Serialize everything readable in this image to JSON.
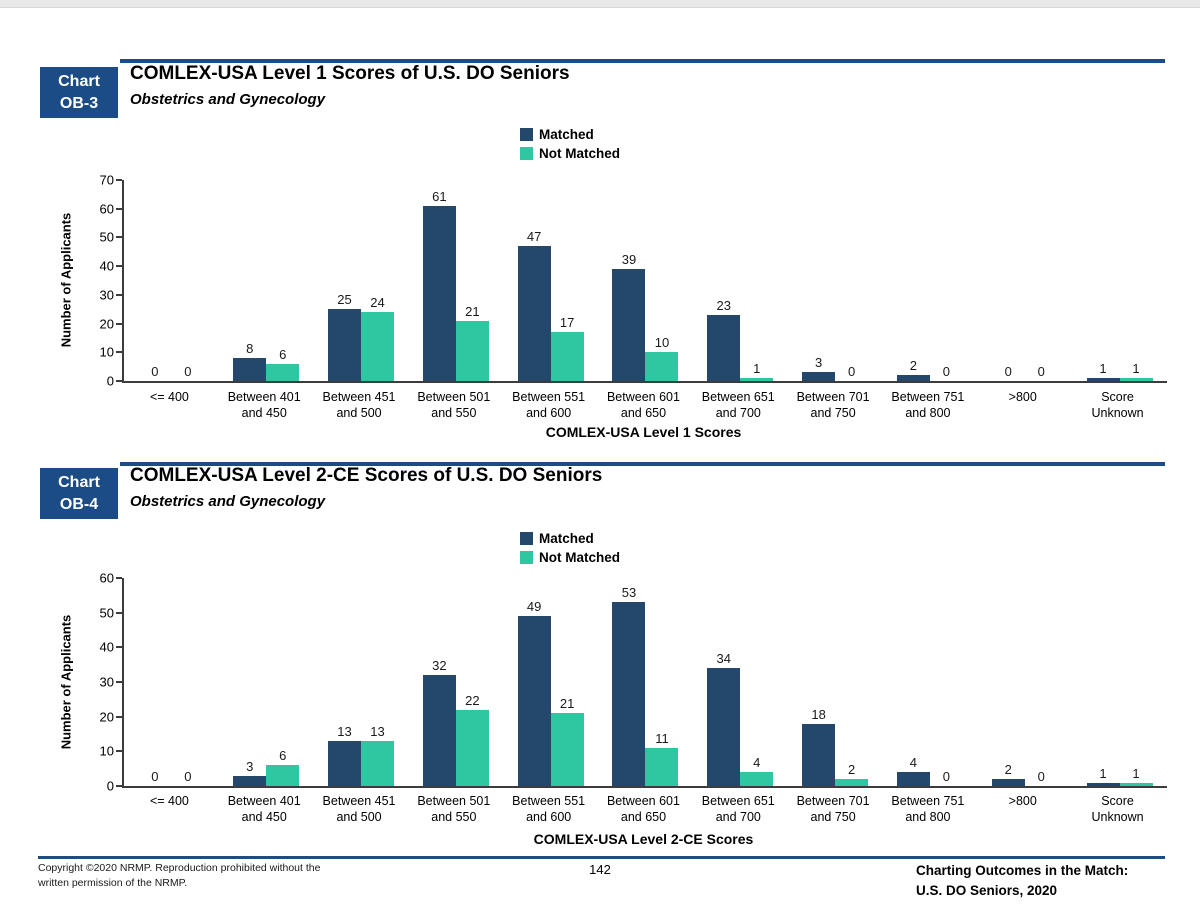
{
  "page": {
    "colors": {
      "header_blue": "#1c4c85",
      "matched": "#23486b",
      "not_matched": "#2fc7a2"
    },
    "footer": {
      "copyright": "Copyright ©2020 NRMP. Reproduction prohibited without the\nwritten permission of the NRMP.",
      "page_number": "142",
      "report_title": "Charting Outcomes in the Match:\nU.S. DO Seniors, 2020"
    }
  },
  "chart_data": [
    {
      "type": "bar",
      "badge": {
        "line1": "Chart",
        "line2": "OB-3"
      },
      "title": "COMLEX-USA Level 1 Scores of U.S. DO Seniors",
      "subtitle": "Obstetrics and Gynecology",
      "xlabel": "COMLEX-USA Level 1 Scores",
      "ylabel": "Number of Applicants",
      "ylim": [
        0,
        70
      ],
      "ytick_step": 10,
      "grid": false,
      "legend_position": "top-center",
      "legend": [
        "Matched",
        "Not Matched"
      ],
      "categories": [
        "<= 400",
        "Between 401\nand 450",
        "Between 451\nand 500",
        "Between 501\nand 550",
        "Between 551\nand 600",
        "Between 601\nand 650",
        "Between 651\nand 700",
        "Between 701\nand 750",
        "Between 751\nand 800",
        ">800",
        "Score\nUnknown"
      ],
      "series": [
        {
          "name": "Matched",
          "color": "#23486b",
          "values": [
            0,
            8,
            25,
            61,
            47,
            39,
            23,
            3,
            2,
            0,
            1
          ]
        },
        {
          "name": "Not Matched",
          "color": "#2fc7a2",
          "values": [
            0,
            6,
            24,
            21,
            17,
            10,
            1,
            0,
            0,
            0,
            1
          ]
        }
      ]
    },
    {
      "type": "bar",
      "badge": {
        "line1": "Chart",
        "line2": "OB-4"
      },
      "title": "COMLEX-USA Level 2-CE Scores of U.S. DO Seniors",
      "subtitle": "Obstetrics and Gynecology",
      "xlabel": "COMLEX-USA Level 2-CE Scores",
      "ylabel": "Number of Applicants",
      "ylim": [
        0,
        60
      ],
      "ytick_step": 10,
      "grid": false,
      "legend_position": "top-center",
      "legend": [
        "Matched",
        "Not Matched"
      ],
      "categories": [
        "<= 400",
        "Between 401\nand 450",
        "Between 451\nand 500",
        "Between 501\nand 550",
        "Between 551\nand 600",
        "Between 601\nand 650",
        "Between 651\nand 700",
        "Between 701\nand 750",
        "Between 751\nand 800",
        ">800",
        "Score\nUnknown"
      ],
      "series": [
        {
          "name": "Matched",
          "color": "#23486b",
          "values": [
            0,
            3,
            13,
            32,
            49,
            53,
            34,
            18,
            4,
            2,
            1
          ]
        },
        {
          "name": "Not Matched",
          "color": "#2fc7a2",
          "values": [
            0,
            6,
            13,
            22,
            21,
            11,
            4,
            2,
            0,
            0,
            1
          ]
        }
      ]
    }
  ]
}
